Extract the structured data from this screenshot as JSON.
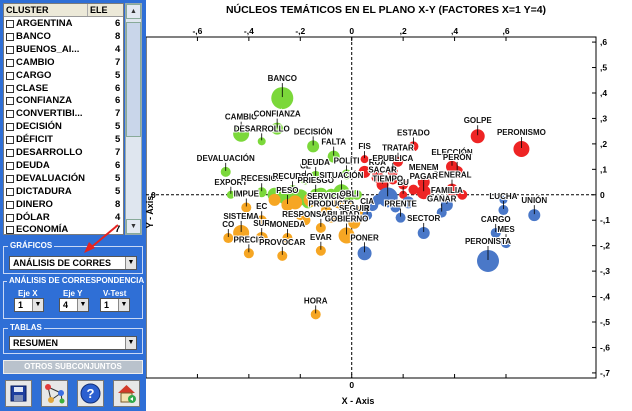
{
  "cluster_list": {
    "col_cluster": "CLUSTER",
    "col_ele": "ELE",
    "rows": [
      {
        "name": "ARGENTINA",
        "count": "6"
      },
      {
        "name": "BANCO",
        "count": "8"
      },
      {
        "name": "BUENOS_AI...",
        "count": "4"
      },
      {
        "name": "CAMBIO",
        "count": "7"
      },
      {
        "name": "CARGO",
        "count": "5"
      },
      {
        "name": "CLASE",
        "count": "6"
      },
      {
        "name": "CONFIANZA",
        "count": "6"
      },
      {
        "name": "CONVERTIBI...",
        "count": "7"
      },
      {
        "name": "DECISIÓN",
        "count": "5"
      },
      {
        "name": "DÉFICIT",
        "count": "5"
      },
      {
        "name": "DESARROLLO",
        "count": "7"
      },
      {
        "name": "DEUDA",
        "count": "6"
      },
      {
        "name": "DEVALUACIÓN",
        "count": "5"
      },
      {
        "name": "DICTADURA",
        "count": "5"
      },
      {
        "name": "DINERO",
        "count": "8"
      },
      {
        "name": "DÓLAR",
        "count": "4"
      },
      {
        "name": "ECONOMÍA",
        "count": "7"
      }
    ]
  },
  "graficos": {
    "title": "GRÁFICOS",
    "selected": "ANÁLISIS DE CORRES"
  },
  "analisis": {
    "title": "ANÁLISIS DE CORRESPONDENCIA",
    "eje_x_label": "Eje X",
    "eje_y_label": "Eje Y",
    "vtest_label": "V-Test",
    "eje_x": "1",
    "eje_y": "4",
    "vtest": "1"
  },
  "tablas": {
    "title": "TABLAS",
    "selected": "RESUMEN"
  },
  "otros_button": "OTROS SUBCONJUNTOS",
  "toolbar_icons": [
    "save-icon",
    "network-icon",
    "help-icon",
    "home-icon"
  ],
  "chart_data": {
    "type": "scatter",
    "title": "NÚCLEOS TEMÁTICOS EN EL PLANO X-Y  (FACTORES X=1 Y=4)",
    "xlabel": "X - Axis",
    "ylabel": "Y - Axis",
    "xlim": [
      -0.8,
      0.95
    ],
    "ylim": [
      -0.72,
      0.62
    ],
    "xticks": [
      -0.6,
      -0.4,
      -0.2,
      0,
      0.2,
      0.4,
      0.6
    ],
    "yticks": [
      0.6,
      0.5,
      0.4,
      0.3,
      0.2,
      0.1,
      0,
      -0.1,
      -0.2,
      -0.3,
      -0.4,
      -0.5,
      -0.6,
      -0.7
    ],
    "colors": {
      "green": "#7bd83a",
      "orange": "#f6a623",
      "red": "#ee2424",
      "blue": "#4a78c8"
    },
    "points": [
      {
        "label": "BANCO",
        "x": -0.27,
        "y": 0.38,
        "c": "green",
        "s": 11
      },
      {
        "label": "CAMBIO",
        "x": -0.43,
        "y": 0.24,
        "c": "green",
        "s": 8
      },
      {
        "label": "CONFIANZA",
        "x": -0.29,
        "y": 0.26,
        "c": "green",
        "s": 6
      },
      {
        "label": "DESARROLLO",
        "x": -0.35,
        "y": 0.21,
        "c": "green",
        "s": 4
      },
      {
        "label": "DECISIÓN",
        "x": -0.15,
        "y": 0.19,
        "c": "green",
        "s": 6
      },
      {
        "label": "DEVALUACIÓN",
        "x": -0.49,
        "y": 0.09,
        "c": "green",
        "s": 5
      },
      {
        "label": "EXPORT",
        "x": -0.47,
        "y": 0.0,
        "c": "green",
        "s": 4
      },
      {
        "label": "RECESIÓN",
        "x": -0.35,
        "y": 0.01,
        "c": "green",
        "s": 5
      },
      {
        "label": "RECURSO",
        "x": -0.23,
        "y": 0.01,
        "c": "green",
        "s": 7
      },
      {
        "label": "CL",
        "x": -0.18,
        "y": 0.06,
        "c": "green",
        "s": 5
      },
      {
        "label": "DEUDA",
        "x": -0.14,
        "y": 0.07,
        "c": "green",
        "s": 6
      },
      {
        "label": "PRIESGO",
        "x": -0.14,
        "y": 0.0,
        "c": "green",
        "s": 6
      },
      {
        "label": "FALTA",
        "x": -0.07,
        "y": 0.15,
        "c": "green",
        "s": 6
      },
      {
        "label": "POLÍTI",
        "x": -0.02,
        "y": 0.08,
        "c": "green",
        "s": 5
      },
      {
        "label": "SITUACIÓN",
        "x": -0.04,
        "y": 0.01,
        "c": "green",
        "s": 8
      },
      {
        "label": "",
        "x": -0.3,
        "y": 0.0,
        "c": "green",
        "s": 7
      },
      {
        "label": "",
        "x": -0.26,
        "y": -0.01,
        "c": "green",
        "s": 7
      },
      {
        "label": "",
        "x": -0.2,
        "y": -0.01,
        "c": "green",
        "s": 8
      },
      {
        "label": "",
        "x": -0.12,
        "y": 0.0,
        "c": "green",
        "s": 7
      },
      {
        "label": "",
        "x": -0.08,
        "y": 0.0,
        "c": "green",
        "s": 6
      },
      {
        "label": "",
        "x": -0.02,
        "y": -0.01,
        "c": "green",
        "s": 7
      },
      {
        "label": "",
        "x": 0.02,
        "y": 0.0,
        "c": "green",
        "s": 5
      },
      {
        "label": "",
        "x": -0.17,
        "y": -0.03,
        "c": "green",
        "s": 6
      },
      {
        "label": "IMPUE",
        "x": -0.41,
        "y": -0.05,
        "c": "orange",
        "s": 5
      },
      {
        "label": "PESO",
        "x": -0.25,
        "y": -0.04,
        "c": "orange",
        "s": 6
      },
      {
        "label": "SERVICIO",
        "x": -0.1,
        "y": -0.06,
        "c": "orange",
        "s": 5
      },
      {
        "label": "OBLI",
        "x": -0.01,
        "y": -0.05,
        "c": "orange",
        "s": 5
      },
      {
        "label": "EC",
        "x": -0.35,
        "y": -0.1,
        "c": "orange",
        "s": 5
      },
      {
        "label": "PRODUCTO",
        "x": -0.08,
        "y": -0.09,
        "c": "orange",
        "s": 5
      },
      {
        "label": "SEGUIR",
        "x": 0.01,
        "y": -0.11,
        "c": "orange",
        "s": 6
      },
      {
        "label": "RESPONSABILIDAD",
        "x": -0.12,
        "y": -0.13,
        "c": "orange",
        "s": 5
      },
      {
        "label": "GOBIERNO",
        "x": -0.02,
        "y": -0.16,
        "c": "orange",
        "s": 8
      },
      {
        "label": "SISTEMA",
        "x": -0.43,
        "y": -0.15,
        "c": "orange",
        "s": 8
      },
      {
        "label": "SUR",
        "x": -0.35,
        "y": -0.17,
        "c": "orange",
        "s": 6
      },
      {
        "label": "MONEDA",
        "x": -0.25,
        "y": -0.17,
        "c": "orange",
        "s": 5
      },
      {
        "label": "CO",
        "x": -0.48,
        "y": -0.17,
        "c": "orange",
        "s": 5
      },
      {
        "label": "PRECIO",
        "x": -0.4,
        "y": -0.23,
        "c": "orange",
        "s": 5
      },
      {
        "label": "EVAR",
        "x": -0.12,
        "y": -0.22,
        "c": "orange",
        "s": 5
      },
      {
        "label": "PROVOCAR",
        "x": -0.27,
        "y": -0.24,
        "c": "orange",
        "s": 5
      },
      {
        "label": "HORA",
        "x": -0.14,
        "y": -0.47,
        "c": "orange",
        "s": 5
      },
      {
        "label": "",
        "x": -0.3,
        "y": -0.02,
        "c": "orange",
        "s": 6
      },
      {
        "label": "",
        "x": -0.22,
        "y": -0.03,
        "c": "orange",
        "s": 7
      },
      {
        "label": "",
        "x": -0.16,
        "y": -0.02,
        "c": "orange",
        "s": 7
      },
      {
        "label": "",
        "x": -0.05,
        "y": -0.03,
        "c": "orange",
        "s": 6
      },
      {
        "label": "",
        "x": 0.04,
        "y": -0.06,
        "c": "orange",
        "s": 5
      },
      {
        "label": "",
        "x": -0.2,
        "y": -0.08,
        "c": "orange",
        "s": 5
      },
      {
        "label": "",
        "x": -0.18,
        "y": -0.1,
        "c": "orange",
        "s": 5
      },
      {
        "label": "GOLPE",
        "x": 0.49,
        "y": 0.23,
        "c": "red",
        "s": 7
      },
      {
        "label": "PERONISMO",
        "x": 0.66,
        "y": 0.18,
        "c": "red",
        "s": 8
      },
      {
        "label": "ESTADO",
        "x": 0.24,
        "y": 0.19,
        "c": "red",
        "s": 5
      },
      {
        "label": "TRATAR",
        "x": 0.18,
        "y": 0.13,
        "c": "red",
        "s": 5
      },
      {
        "label": "RUA",
        "x": 0.1,
        "y": 0.07,
        "c": "red",
        "s": 6
      },
      {
        "label": "SACAR",
        "x": 0.12,
        "y": 0.04,
        "c": "red",
        "s": 6
      },
      {
        "label": "ELECCIÓN",
        "x": 0.39,
        "y": 0.11,
        "c": "red",
        "s": 6
      },
      {
        "label": "PERÓN",
        "x": 0.41,
        "y": 0.09,
        "c": "red",
        "s": 6
      },
      {
        "label": "MENEM",
        "x": 0.28,
        "y": 0.05,
        "c": "red",
        "s": 6
      },
      {
        "label": "GENERAL",
        "x": 0.39,
        "y": 0.02,
        "c": "red",
        "s": 6
      },
      {
        "label": "PAGAR",
        "x": 0.28,
        "y": 0.01,
        "c": "red",
        "s": 7
      },
      {
        "label": "",
        "x": 0.05,
        "y": 0.09,
        "c": "red",
        "s": 6
      },
      {
        "label": "",
        "x": 0.16,
        "y": 0.06,
        "c": "red",
        "s": 5
      },
      {
        "label": "",
        "x": 0.2,
        "y": 0.04,
        "c": "red",
        "s": 5
      },
      {
        "label": "",
        "x": 0.24,
        "y": 0.02,
        "c": "red",
        "s": 5
      },
      {
        "label": "",
        "x": 0.43,
        "y": 0.0,
        "c": "red",
        "s": 5
      },
      {
        "label": "EPUBLICA",
        "x": 0.16,
        "y": 0.09,
        "c": "red",
        "s": 5
      },
      {
        "label": "FIS",
        "x": 0.05,
        "y": 0.14,
        "c": "red",
        "s": 4
      },
      {
        "label": "BU",
        "x": 0.2,
        "y": 0.0,
        "c": "red",
        "s": 4
      },
      {
        "label": "TIEMPO",
        "x": 0.14,
        "y": -0.01,
        "c": "blue",
        "s": 10
      },
      {
        "label": "FAMILIA",
        "x": 0.37,
        "y": -0.04,
        "c": "blue",
        "s": 6
      },
      {
        "label": "GANAR",
        "x": 0.35,
        "y": -0.07,
        "c": "blue",
        "s": 5
      },
      {
        "label": "LUCHA",
        "x": 0.59,
        "y": -0.06,
        "c": "blue",
        "s": 5
      },
      {
        "label": "UNIÓN",
        "x": 0.71,
        "y": -0.08,
        "c": "blue",
        "s": 6
      },
      {
        "label": "CARGO",
        "x": 0.56,
        "y": -0.15,
        "c": "blue",
        "s": 5
      },
      {
        "label": "MES",
        "x": 0.6,
        "y": -0.19,
        "c": "blue",
        "s": 5
      },
      {
        "label": "SECTOR",
        "x": 0.28,
        "y": -0.15,
        "c": "blue",
        "s": 6
      },
      {
        "label": "PONER",
        "x": 0.05,
        "y": -0.23,
        "c": "blue",
        "s": 7
      },
      {
        "label": "PERONISTA",
        "x": 0.53,
        "y": -0.26,
        "c": "blue",
        "s": 11
      },
      {
        "label": "CIA",
        "x": 0.06,
        "y": -0.08,
        "c": "blue",
        "s": 5
      },
      {
        "label": "PRENTE",
        "x": 0.19,
        "y": -0.09,
        "c": "blue",
        "s": 5
      },
      {
        "label": "",
        "x": 0.08,
        "y": -0.04,
        "c": "blue",
        "s": 6
      },
      {
        "label": "",
        "x": 0.17,
        "y": -0.05,
        "c": "blue",
        "s": 5
      },
      {
        "label": "",
        "x": 0.22,
        "y": -0.03,
        "c": "blue",
        "s": 6
      },
      {
        "label": "",
        "x": 0.1,
        "y": -0.02,
        "c": "blue",
        "s": 5
      },
      {
        "label": "",
        "x": 0.59,
        "y": -0.02,
        "c": "blue",
        "s": 4
      }
    ]
  }
}
